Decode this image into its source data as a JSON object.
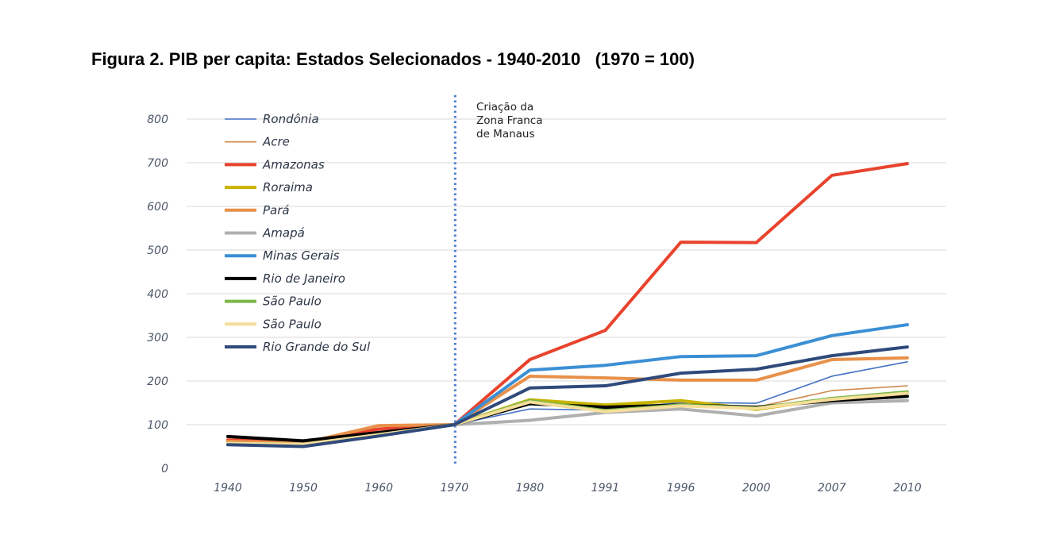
{
  "chart_data": {
    "type": "line",
    "title": "Figura 2. PIB per capita: Estados Selecionados - 1940-2010   (1970 = 100)",
    "categories": [
      "1940",
      "1950",
      "1960",
      "1970",
      "1980",
      "1991",
      "1996",
      "2000",
      "2007",
      "2010"
    ],
    "ylim": [
      0,
      800
    ],
    "yticks": [
      0,
      100,
      200,
      300,
      400,
      500,
      600,
      700,
      800
    ],
    "grid": true,
    "legend_placement": "top-left",
    "annotation": {
      "lines": [
        "Criação da",
        "Zona Franca",
        "de Manaus"
      ],
      "at_category": "1970"
    },
    "series": [
      {
        "name": "Rondônia",
        "color": "#4472c4",
        "thin": true,
        "values": [
          58,
          55,
          78,
          100,
          136,
          133,
          151,
          149,
          211,
          244
        ]
      },
      {
        "name": "Acre",
        "color": "#d08a4e",
        "thin": true,
        "values": [
          60,
          57,
          80,
          100,
          150,
          135,
          148,
          140,
          178,
          189
        ]
      },
      {
        "name": "Amazonas",
        "color": "#e8432d",
        "values": [
          65,
          60,
          90,
          100,
          249,
          316,
          518,
          517,
          671,
          698
        ]
      },
      {
        "name": "Roraima",
        "color": "#c8b400",
        "values": [
          58,
          56,
          78,
          100,
          157,
          145,
          155,
          135,
          160,
          172
        ]
      },
      {
        "name": "Pará",
        "color": "#e8914a",
        "values": [
          62,
          58,
          98,
          100,
          211,
          207,
          202,
          202,
          249,
          253
        ]
      },
      {
        "name": "Amapá",
        "color": "#b0b0b0",
        "values": [
          57,
          54,
          76,
          100,
          110,
          128,
          136,
          120,
          150,
          155
        ]
      },
      {
        "name": "Minas Gerais",
        "color": "#3b8fd4",
        "values": [
          55,
          52,
          75,
          100,
          225,
          236,
          256,
          258,
          304,
          329
        ]
      },
      {
        "name": "Rio de Janeiro",
        "color": "#000000",
        "values": [
          73,
          63,
          82,
          100,
          148,
          140,
          145,
          140,
          155,
          165
        ]
      },
      {
        "name": "São Paulo",
        "color": "#7ab648",
        "values": [
          57,
          55,
          77,
          100,
          155,
          132,
          145,
          138,
          160,
          175
        ]
      },
      {
        "name": "São Paulo",
        "color": "#f5de9a",
        "values": [
          57,
          55,
          77,
          100,
          152,
          130,
          143,
          137,
          158,
          172
        ]
      },
      {
        "name": "Rio Grande do Sul",
        "color": "#2f4a7a",
        "values": [
          54,
          50,
          74,
          100,
          184,
          189,
          218,
          227,
          258,
          278
        ]
      }
    ]
  }
}
